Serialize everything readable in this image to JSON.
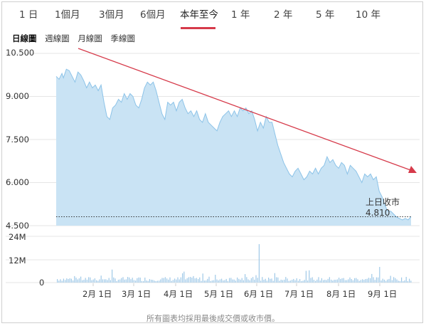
{
  "tabs": [
    {
      "label": "1 日"
    },
    {
      "label": "1個月"
    },
    {
      "label": "3個月"
    },
    {
      "label": "6個月"
    },
    {
      "label": "本年至今",
      "active": true
    },
    {
      "label": "1 年"
    },
    {
      "label": "2 年"
    },
    {
      "label": "5 年"
    },
    {
      "label": "10 年"
    }
  ],
  "subtabs": [
    {
      "label": "日線圖",
      "active": true
    },
    {
      "label": "週線圖"
    },
    {
      "label": "月線圖"
    },
    {
      "label": "季線圖"
    }
  ],
  "accent_color": "#d63a4a",
  "chart_data": {
    "type": "area",
    "y_ticks": [
      "10.500",
      "9.000",
      "7.500",
      "6.000",
      "4.500"
    ],
    "ylim": [
      4.5,
      10.5
    ],
    "volume_ticks": [
      "24M",
      "12M",
      "0"
    ],
    "volume_lim": [
      0,
      24
    ],
    "x_ticks": [
      "2月 1日",
      "3月 1日",
      "4月 1日",
      "5月 1日",
      "6月 1日",
      "7月 1日",
      "8月 1日",
      "9月 1日"
    ],
    "last_close_label": "上日收市",
    "last_close_value": "4.810",
    "last_close": 4.81,
    "x_span_days": 245,
    "price_series": [
      [
        0,
        9.7
      ],
      [
        2,
        9.6
      ],
      [
        4,
        9.8
      ],
      [
        5,
        9.65
      ],
      [
        7,
        9.95
      ],
      [
        9,
        9.9
      ],
      [
        11,
        9.7
      ],
      [
        13,
        9.5
      ],
      [
        15,
        9.85
      ],
      [
        17,
        9.75
      ],
      [
        19,
        9.55
      ],
      [
        21,
        9.3
      ],
      [
        23,
        9.5
      ],
      [
        25,
        9.3
      ],
      [
        27,
        9.4
      ],
      [
        29,
        9.2
      ],
      [
        31,
        9.4
      ],
      [
        33,
        8.8
      ],
      [
        35,
        8.3
      ],
      [
        37,
        8.2
      ],
      [
        39,
        8.6
      ],
      [
        41,
        8.7
      ],
      [
        43,
        8.9
      ],
      [
        45,
        8.8
      ],
      [
        47,
        9.1
      ],
      [
        49,
        8.9
      ],
      [
        51,
        9.1
      ],
      [
        53,
        9.0
      ],
      [
        55,
        8.7
      ],
      [
        57,
        8.6
      ],
      [
        59,
        8.9
      ],
      [
        61,
        9.3
      ],
      [
        63,
        9.5
      ],
      [
        65,
        9.4
      ],
      [
        67,
        9.5
      ],
      [
        69,
        9.2
      ],
      [
        71,
        8.8
      ],
      [
        73,
        8.4
      ],
      [
        75,
        8.2
      ],
      [
        77,
        8.8
      ],
      [
        79,
        8.7
      ],
      [
        81,
        8.8
      ],
      [
        83,
        8.5
      ],
      [
        85,
        8.8
      ],
      [
        87,
        8.9
      ],
      [
        89,
        8.6
      ],
      [
        91,
        8.4
      ],
      [
        93,
        8.5
      ],
      [
        95,
        8.3
      ],
      [
        97,
        8.5
      ],
      [
        99,
        8.2
      ],
      [
        101,
        8.1
      ],
      [
        103,
        8.4
      ],
      [
        105,
        8.1
      ],
      [
        107,
        8.0
      ],
      [
        109,
        7.9
      ],
      [
        111,
        7.8
      ],
      [
        113,
        8.1
      ],
      [
        115,
        8.3
      ],
      [
        117,
        8.4
      ],
      [
        119,
        8.5
      ],
      [
        121,
        8.3
      ],
      [
        123,
        8.5
      ],
      [
        125,
        8.3
      ],
      [
        127,
        8.6
      ],
      [
        129,
        8.5
      ],
      [
        131,
        8.6
      ],
      [
        133,
        8.4
      ],
      [
        135,
        8.5
      ],
      [
        137,
        8.2
      ],
      [
        139,
        7.8
      ],
      [
        141,
        8.1
      ],
      [
        143,
        7.9
      ],
      [
        145,
        8.3
      ],
      [
        147,
        8.1
      ],
      [
        149,
        8.1
      ],
      [
        151,
        7.7
      ],
      [
        153,
        7.3
      ],
      [
        155,
        7.0
      ],
      [
        157,
        6.7
      ],
      [
        159,
        6.5
      ],
      [
        161,
        6.3
      ],
      [
        163,
        6.2
      ],
      [
        165,
        6.4
      ],
      [
        167,
        6.5
      ],
      [
        169,
        6.3
      ],
      [
        171,
        6.1
      ],
      [
        173,
        6.2
      ],
      [
        175,
        6.4
      ],
      [
        177,
        6.3
      ],
      [
        179,
        6.5
      ],
      [
        181,
        6.3
      ],
      [
        183,
        6.5
      ],
      [
        185,
        6.6
      ],
      [
        187,
        6.9
      ],
      [
        189,
        6.7
      ],
      [
        191,
        6.8
      ],
      [
        193,
        6.6
      ],
      [
        195,
        6.5
      ],
      [
        197,
        6.7
      ],
      [
        199,
        6.6
      ],
      [
        201,
        6.3
      ],
      [
        203,
        6.6
      ],
      [
        205,
        6.5
      ],
      [
        207,
        6.4
      ],
      [
        209,
        6.2
      ],
      [
        211,
        6.0
      ],
      [
        213,
        6.3
      ],
      [
        215,
        6.2
      ],
      [
        217,
        6.3
      ],
      [
        219,
        6.1
      ],
      [
        221,
        6.2
      ],
      [
        223,
        5.7
      ],
      [
        225,
        5.5
      ],
      [
        227,
        5.2
      ],
      [
        229,
        5.0
      ],
      [
        231,
        5.0
      ],
      [
        233,
        4.9
      ],
      [
        235,
        4.8
      ],
      [
        237,
        4.75
      ],
      [
        239,
        4.7
      ],
      [
        241,
        4.75
      ],
      [
        243,
        4.7
      ],
      [
        245,
        4.81
      ]
    ]
  },
  "footer": "所有圖表均採用最後成交價或收市價。"
}
